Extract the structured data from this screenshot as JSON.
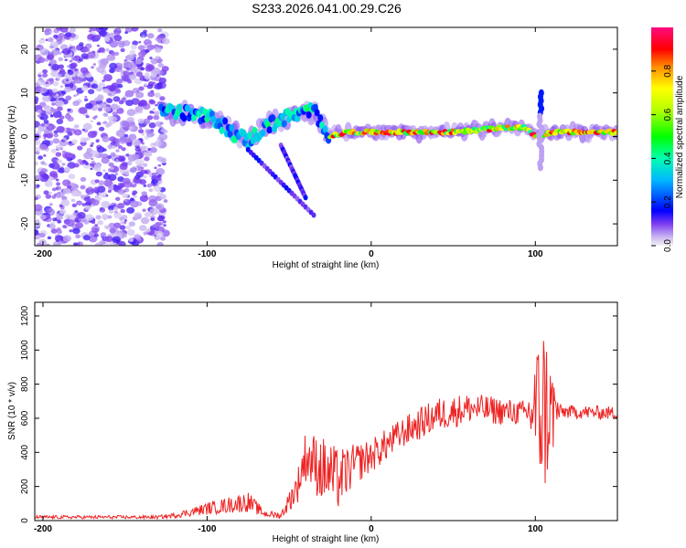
{
  "title": "S233.2026.041.00.29.C26",
  "chart_data": [
    {
      "type": "heatmap",
      "xlabel": "Height of straight line (km)",
      "ylabel": "Frequency (Hz)",
      "xlim": [
        -205,
        150
      ],
      "ylim": [
        -25,
        25
      ],
      "xticks": [
        {
          "v": -200,
          "label": "-200"
        },
        {
          "v": -100,
          "label": "-100"
        },
        {
          "v": 0,
          "label": "0"
        },
        {
          "v": 100,
          "label": "100"
        }
      ],
      "yticks": [
        {
          "v": -20,
          "label": "-20"
        },
        {
          "v": -10,
          "label": "-10"
        },
        {
          "v": 0,
          "label": "0"
        },
        {
          "v": 10,
          "label": "10"
        },
        {
          "v": 20,
          "label": "20"
        }
      ],
      "ridge": [
        {
          "x": -125,
          "y": 6
        },
        {
          "x": -110,
          "y": 5
        },
        {
          "x": -95,
          "y": 4
        },
        {
          "x": -85,
          "y": 1
        },
        {
          "x": -75,
          "y": -1
        },
        {
          "x": -65,
          "y": 2
        },
        {
          "x": -55,
          "y": 4
        },
        {
          "x": -45,
          "y": 5
        },
        {
          "x": -35,
          "y": 6
        },
        {
          "x": -25,
          "y": 0
        },
        {
          "x": -15,
          "y": 1
        },
        {
          "x": 0,
          "y": 1
        },
        {
          "x": 20,
          "y": 1
        },
        {
          "x": 50,
          "y": 1
        },
        {
          "x": 80,
          "y": 2
        },
        {
          "x": 95,
          "y": 2
        },
        {
          "x": 100,
          "y": 0
        },
        {
          "x": 110,
          "y": 1
        },
        {
          "x": 130,
          "y": 1
        },
        {
          "x": 150,
          "y": 1
        }
      ]
    },
    {
      "type": "line",
      "xlabel": "Height of straight line (km)",
      "ylabel": "SNR (10 * v/v)",
      "xlim": [
        -205,
        150
      ],
      "ylim": [
        0,
        1280
      ],
      "xticks": [
        {
          "v": -200,
          "label": "-200"
        },
        {
          "v": -100,
          "label": "-100"
        },
        {
          "v": 0,
          "label": "0"
        },
        {
          "v": 100,
          "label": "100"
        }
      ],
      "yticks": [
        {
          "v": 0,
          "label": "0"
        },
        {
          "v": 200,
          "label": "200"
        },
        {
          "v": 400,
          "label": "400"
        },
        {
          "v": 600,
          "label": "600"
        },
        {
          "v": 800,
          "label": "800"
        },
        {
          "v": 1000,
          "label": "1000"
        },
        {
          "v": 1200,
          "label": "1200"
        }
      ],
      "series": [
        {
          "name": "SNR",
          "color": "#ee2222",
          "envelope": [
            {
              "x": -205,
              "mean": 20,
              "amp": 10
            },
            {
              "x": -130,
              "mean": 20,
              "amp": 10
            },
            {
              "x": -120,
              "mean": 30,
              "amp": 15
            },
            {
              "x": -100,
              "mean": 70,
              "amp": 35
            },
            {
              "x": -75,
              "mean": 110,
              "amp": 60
            },
            {
              "x": -65,
              "mean": 40,
              "amp": 20
            },
            {
              "x": -55,
              "mean": 30,
              "amp": 20
            },
            {
              "x": -45,
              "mean": 200,
              "amp": 100
            },
            {
              "x": -40,
              "mean": 380,
              "amp": 150
            },
            {
              "x": -30,
              "mean": 300,
              "amp": 200
            },
            {
              "x": -20,
              "mean": 240,
              "amp": 180
            },
            {
              "x": -10,
              "mean": 330,
              "amp": 120
            },
            {
              "x": 0,
              "mean": 380,
              "amp": 100
            },
            {
              "x": 20,
              "mean": 520,
              "amp": 90
            },
            {
              "x": 40,
              "mean": 620,
              "amp": 100
            },
            {
              "x": 60,
              "mean": 660,
              "amp": 90
            },
            {
              "x": 80,
              "mean": 640,
              "amp": 80
            },
            {
              "x": 95,
              "mean": 630,
              "amp": 70
            },
            {
              "x": 100,
              "mean": 650,
              "amp": 350
            },
            {
              "x": 105,
              "mean": 650,
              "amp": 550
            },
            {
              "x": 110,
              "mean": 640,
              "amp": 300
            },
            {
              "x": 115,
              "mean": 640,
              "amp": 40
            },
            {
              "x": 150,
              "mean": 630,
              "amp": 40
            }
          ]
        }
      ]
    }
  ],
  "colorbar": {
    "label": "Normalized spectral amplitude",
    "range": [
      0,
      1
    ],
    "ticks": [
      {
        "v": 0,
        "label": "0.0"
      },
      {
        "v": 0.2,
        "label": "0.2"
      },
      {
        "v": 0.4,
        "label": "0.4"
      },
      {
        "v": 0.6,
        "label": "0.6"
      },
      {
        "v": 0.8,
        "label": "0.8"
      }
    ]
  }
}
